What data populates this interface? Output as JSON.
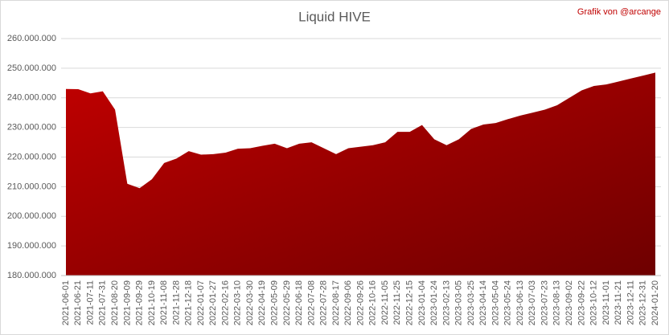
{
  "chart_data": {
    "type": "area",
    "title": "Liquid HIVE",
    "annotation": "Grafik von @arcange",
    "color": "#c00000",
    "color_end": "#6e0000",
    "grid": true,
    "categories": [
      "2021-06-01",
      "2021-06-21",
      "2021-07-11",
      "2021-07-31",
      "2021-08-20",
      "2021-09-09",
      "2021-09-29",
      "2021-10-19",
      "2021-11-08",
      "2021-11-28",
      "2021-12-18",
      "2022-01-07",
      "2022-01-27",
      "2022-02-16",
      "2022-03-10",
      "2022-03-30",
      "2022-04-19",
      "2022-05-09",
      "2022-05-29",
      "2022-06-18",
      "2022-07-08",
      "2022-07-28",
      "2022-08-17",
      "2022-09-06",
      "2022-09-26",
      "2022-10-16",
      "2022-11-05",
      "2022-11-25",
      "2022-12-15",
      "2023-01-04",
      "2023-01-24",
      "2023-02-13",
      "2023-03-05",
      "2023-03-25",
      "2023-04-14",
      "2023-05-04",
      "2023-05-24",
      "2023-06-13",
      "2023-07-03",
      "2023-07-23",
      "2023-08-13",
      "2023-09-02",
      "2023-09-22",
      "2023-10-12",
      "2023-11-01",
      "2023-11-21",
      "2023-12-11",
      "2023-12-31",
      "2024-01-20"
    ],
    "values": [
      243000000,
      242900000,
      241500000,
      242200000,
      236000000,
      211000000,
      209500000,
      212500000,
      218000000,
      219500000,
      222000000,
      220800000,
      221000000,
      221500000,
      222800000,
      223000000,
      223800000,
      224500000,
      223000000,
      224500000,
      225000000,
      223000000,
      221000000,
      223000000,
      223500000,
      224000000,
      225000000,
      228500000,
      228500000,
      230800000,
      226000000,
      224000000,
      226000000,
      229500000,
      231000000,
      231500000,
      232800000,
      234000000,
      235000000,
      236000000,
      237500000,
      240000000,
      242500000,
      244000000,
      244500000,
      245500000,
      246500000,
      247500000,
      248500000
    ],
    "ylim": [
      180000000,
      260000000
    ],
    "yticks": [
      {
        "value": 180000000,
        "label": "180.000.000"
      },
      {
        "value": 190000000,
        "label": "190.000.000"
      },
      {
        "value": 200000000,
        "label": "200.000.000"
      },
      {
        "value": 210000000,
        "label": "210.000.000"
      },
      {
        "value": 220000000,
        "label": "220.000.000"
      },
      {
        "value": 230000000,
        "label": "230.000.000"
      },
      {
        "value": 240000000,
        "label": "240.000.000"
      },
      {
        "value": 250000000,
        "label": "250.000.000"
      },
      {
        "value": 260000000,
        "label": "260.000.000"
      }
    ]
  }
}
